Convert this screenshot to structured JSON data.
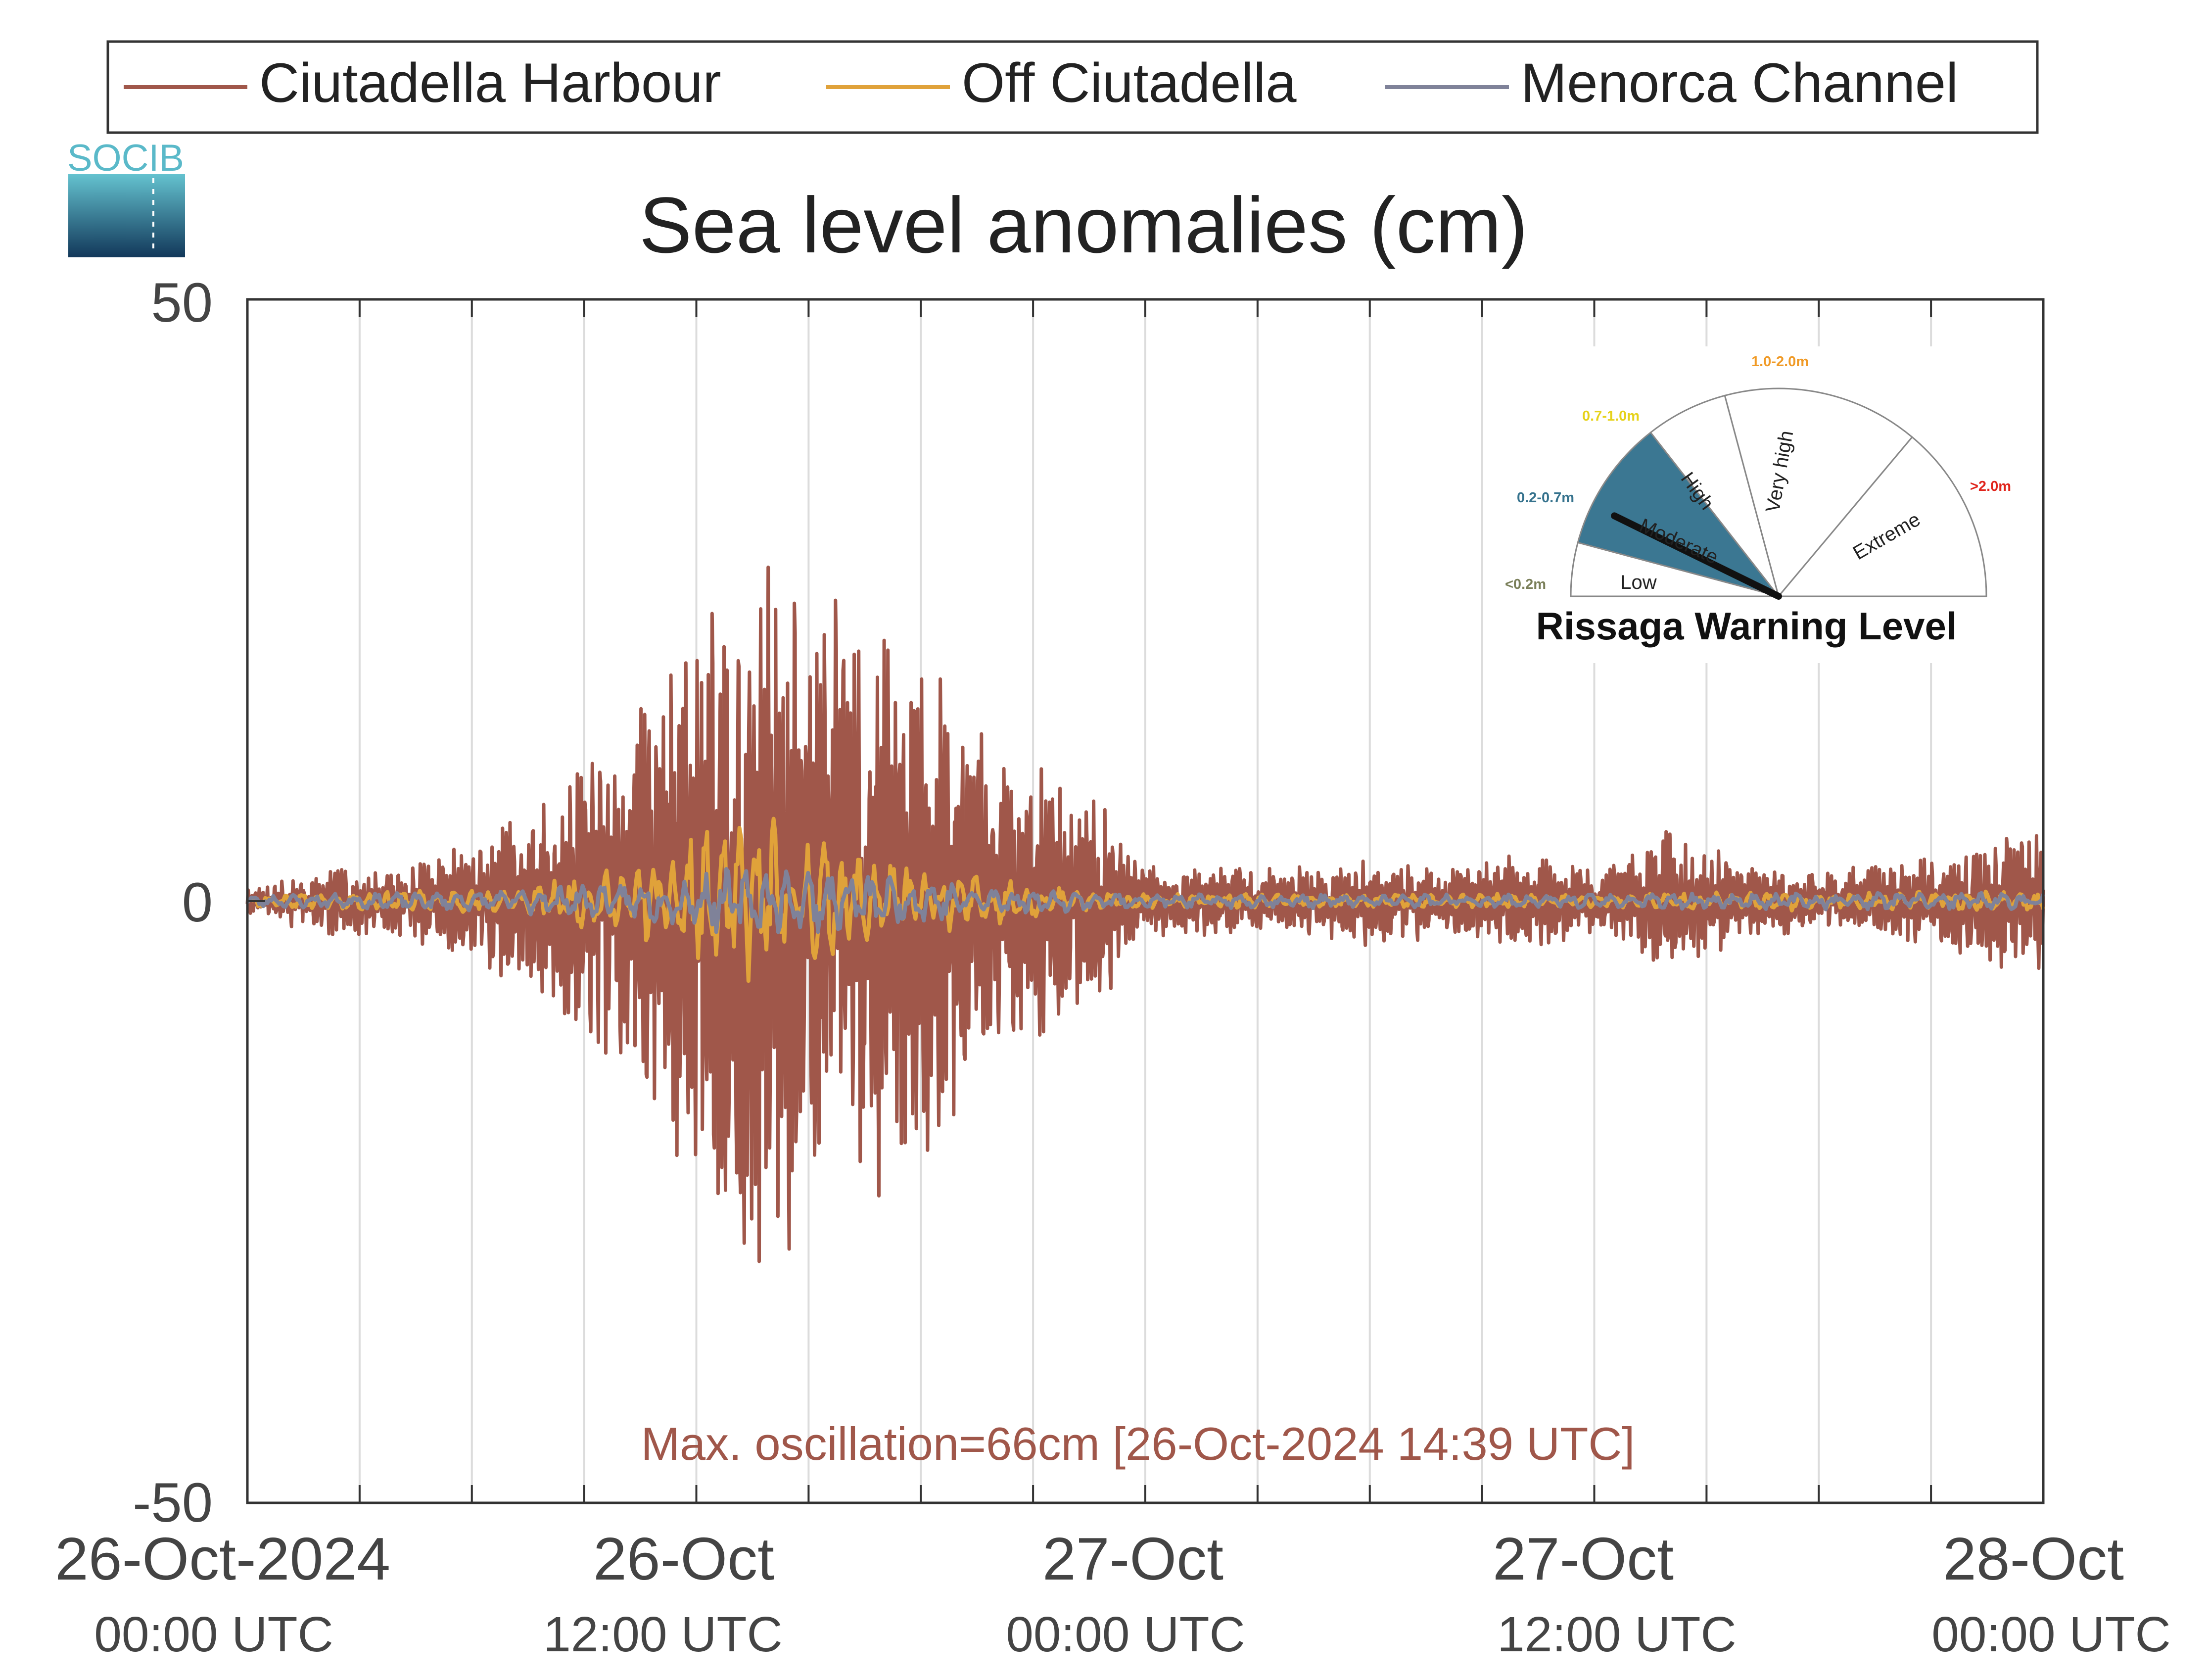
{
  "logo": {
    "text": "SOCIB"
  },
  "legend": {
    "placement": "top",
    "items": [
      {
        "label": "Ciutadella Harbour",
        "color": "#a0574a"
      },
      {
        "label": "Off Ciutadella",
        "color": "#e0a23a"
      },
      {
        "label": "Menorca Channel",
        "color": "#7f8299"
      }
    ]
  },
  "chart_data": {
    "type": "line",
    "title": "Sea level anomalies (cm)",
    "xlabel": "",
    "ylabel": "",
    "ylim": [
      -50,
      50
    ],
    "xlim_hours": [
      0,
      48
    ],
    "grid": {
      "vertical": true,
      "horizontal": false
    },
    "x_grid_step_hours": 3,
    "y_ticks": [
      "50",
      "0",
      "-50"
    ],
    "x_ticks": [
      {
        "hour": 0,
        "date": "26-Oct-2024",
        "time": "00:00 UTC"
      },
      {
        "hour": 12,
        "date": "26-Oct",
        "time": "12:00 UTC"
      },
      {
        "hour": 24,
        "date": "27-Oct",
        "time": "00:00 UTC"
      },
      {
        "hour": 36,
        "date": "27-Oct",
        "time": "12:00 UTC"
      },
      {
        "hour": 48,
        "date": "28-Oct",
        "time": "00:00 UTC"
      }
    ],
    "annotation": {
      "text": "Max. oscillation=66cm [26-Oct-2024 14:39 UTC]",
      "color": "#a0574a"
    },
    "series": [
      {
        "name": "Ciutadella Harbour",
        "color": "#a0574a",
        "envelope_hours": [
          0,
          2,
          3,
          4,
          5,
          6,
          7,
          8,
          9,
          10,
          11,
          12,
          13,
          14,
          15,
          16,
          17,
          18,
          19,
          20,
          21,
          22,
          23,
          24,
          25,
          26,
          28,
          30,
          32,
          34,
          36,
          37,
          38,
          39,
          40,
          42,
          44,
          45,
          46,
          47,
          48
        ],
        "envelope_cm": [
          1,
          3,
          3,
          3,
          4,
          5,
          7,
          9,
          12,
          16,
          20,
          24,
          30,
          33,
          30,
          28,
          25,
          22,
          18,
          14,
          12,
          10,
          8,
          3,
          3,
          3,
          3,
          4,
          3,
          4,
          3,
          4,
          7,
          5,
          3,
          3,
          3,
          4,
          5,
          6,
          6
        ]
      },
      {
        "name": "Off Ciutadella",
        "color": "#e0a23a",
        "envelope_hours": [
          0,
          6,
          8,
          9,
          10,
          11,
          12,
          13,
          14,
          15,
          16,
          17,
          18,
          20,
          22,
          24,
          30,
          36,
          40,
          44,
          48
        ],
        "envelope_cm": [
          0.5,
          1,
          1.5,
          2.5,
          3,
          4,
          6,
          7,
          7,
          6,
          5,
          4,
          3,
          2,
          1,
          0.6,
          0.6,
          0.6,
          0.8,
          0.8,
          0.8
        ]
      },
      {
        "name": "Menorca Channel",
        "color": "#7f8299",
        "envelope_hours": [
          0,
          6,
          9,
          11,
          12,
          13,
          14,
          15,
          16,
          18,
          20,
          24,
          36,
          48
        ],
        "envelope_cm": [
          0.5,
          0.8,
          1.5,
          2,
          2.5,
          3,
          3,
          2.8,
          2.5,
          2,
          1.2,
          0.6,
          0.6,
          0.8
        ]
      }
    ]
  },
  "gauge": {
    "title": "Rissaga Warning Level",
    "needle_value": 0.35,
    "levels": [
      {
        "name": "Low",
        "range": "<0.2m",
        "range_color": "#7a7f59",
        "active": false
      },
      {
        "name": "Moderate",
        "range": "0.2-0.7m",
        "range_color": "#35728d",
        "active": true,
        "fill": "#3b7792"
      },
      {
        "name": "High",
        "range": "0.7-1.0m",
        "range_color": "#e6d21a",
        "active": false
      },
      {
        "name": "Very high",
        "range": "1.0-2.0m",
        "range_color": "#f09a26",
        "active": false
      },
      {
        "name": "Extreme",
        "range": ">2.0m",
        "range_color": "#e0241b",
        "active": false
      }
    ]
  }
}
